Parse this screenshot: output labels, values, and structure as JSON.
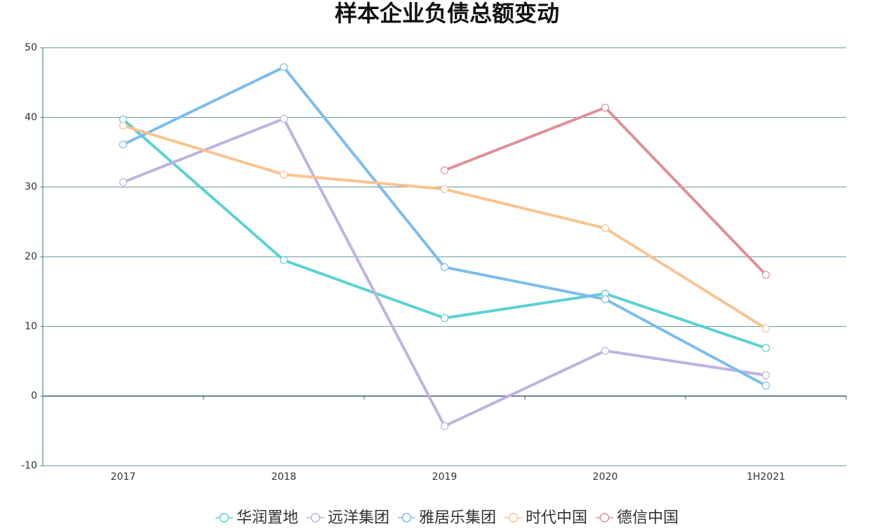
{
  "chart_data": {
    "type": "line",
    "title": "样本企业负债总额变动",
    "categories": [
      "2017",
      "2018",
      "2019",
      "2020",
      "1H2021"
    ],
    "series": [
      {
        "name": "华润置地",
        "color": "#5bd1d1",
        "values": [
          39.7,
          19.5,
          11.2,
          14.7,
          6.9
        ]
      },
      {
        "name": "远洋集团",
        "color": "#c0b2e0",
        "values": [
          30.7,
          39.8,
          -4.3,
          6.5,
          3.0
        ]
      },
      {
        "name": "雅居乐集团",
        "color": "#7cbdec",
        "values": [
          36.1,
          47.2,
          18.5,
          13.9,
          1.5
        ]
      },
      {
        "name": "时代中国",
        "color": "#fac38f",
        "values": [
          38.8,
          31.8,
          29.7,
          24.1,
          9.7
        ]
      },
      {
        "name": "德信中国",
        "color": "#dd9096",
        "values": [
          null,
          null,
          32.4,
          41.4,
          17.4
        ]
      }
    ],
    "ylim": [
      -10,
      50
    ],
    "yticks": [
      -10,
      0,
      10,
      20,
      30,
      40,
      50
    ],
    "grid": true,
    "legend": "bottom"
  }
}
